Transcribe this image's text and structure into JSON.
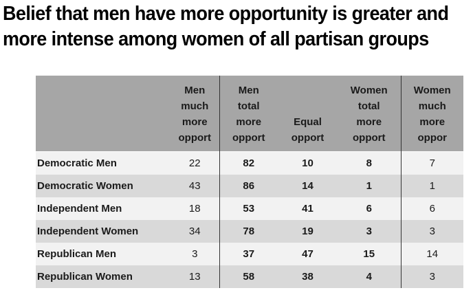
{
  "title_lines": [
    "Belief that men have more opportunity is greater and",
    "more intense among women of all partisan groups"
  ],
  "chart_data": {
    "type": "table",
    "columns": [
      "Men\nmuch\nmore\nopport",
      "Men\ntotal\nmore\nopport",
      "Equal\nopport",
      "Women\ntotal\nmore\nopport",
      "Women\nmuch\nmore\noppor"
    ],
    "rows": [
      {
        "label": "Democratic Men",
        "values": [
          "22",
          "82",
          "10",
          "8",
          "7"
        ]
      },
      {
        "label": "Democratic Women",
        "values": [
          "43",
          "86",
          "14",
          "1",
          "1"
        ]
      },
      {
        "label": "Independent Men",
        "values": [
          "18",
          "53",
          "41",
          "6",
          "6"
        ]
      },
      {
        "label": "Independent Women",
        "values": [
          "34",
          "78",
          "19",
          "3",
          "3"
        ]
      },
      {
        "label": "Republican Men",
        "values": [
          "3",
          "37",
          "47",
          "15",
          "14"
        ]
      },
      {
        "label": "Republican Women",
        "values": [
          "13",
          "58",
          "38",
          "4",
          "3"
        ]
      }
    ],
    "bold_columns": [
      1,
      2,
      3
    ],
    "colors": {
      "header_bg": "#a6a6a6",
      "row_light": "#f2f2f2",
      "row_dark": "#d9d9d9"
    }
  }
}
